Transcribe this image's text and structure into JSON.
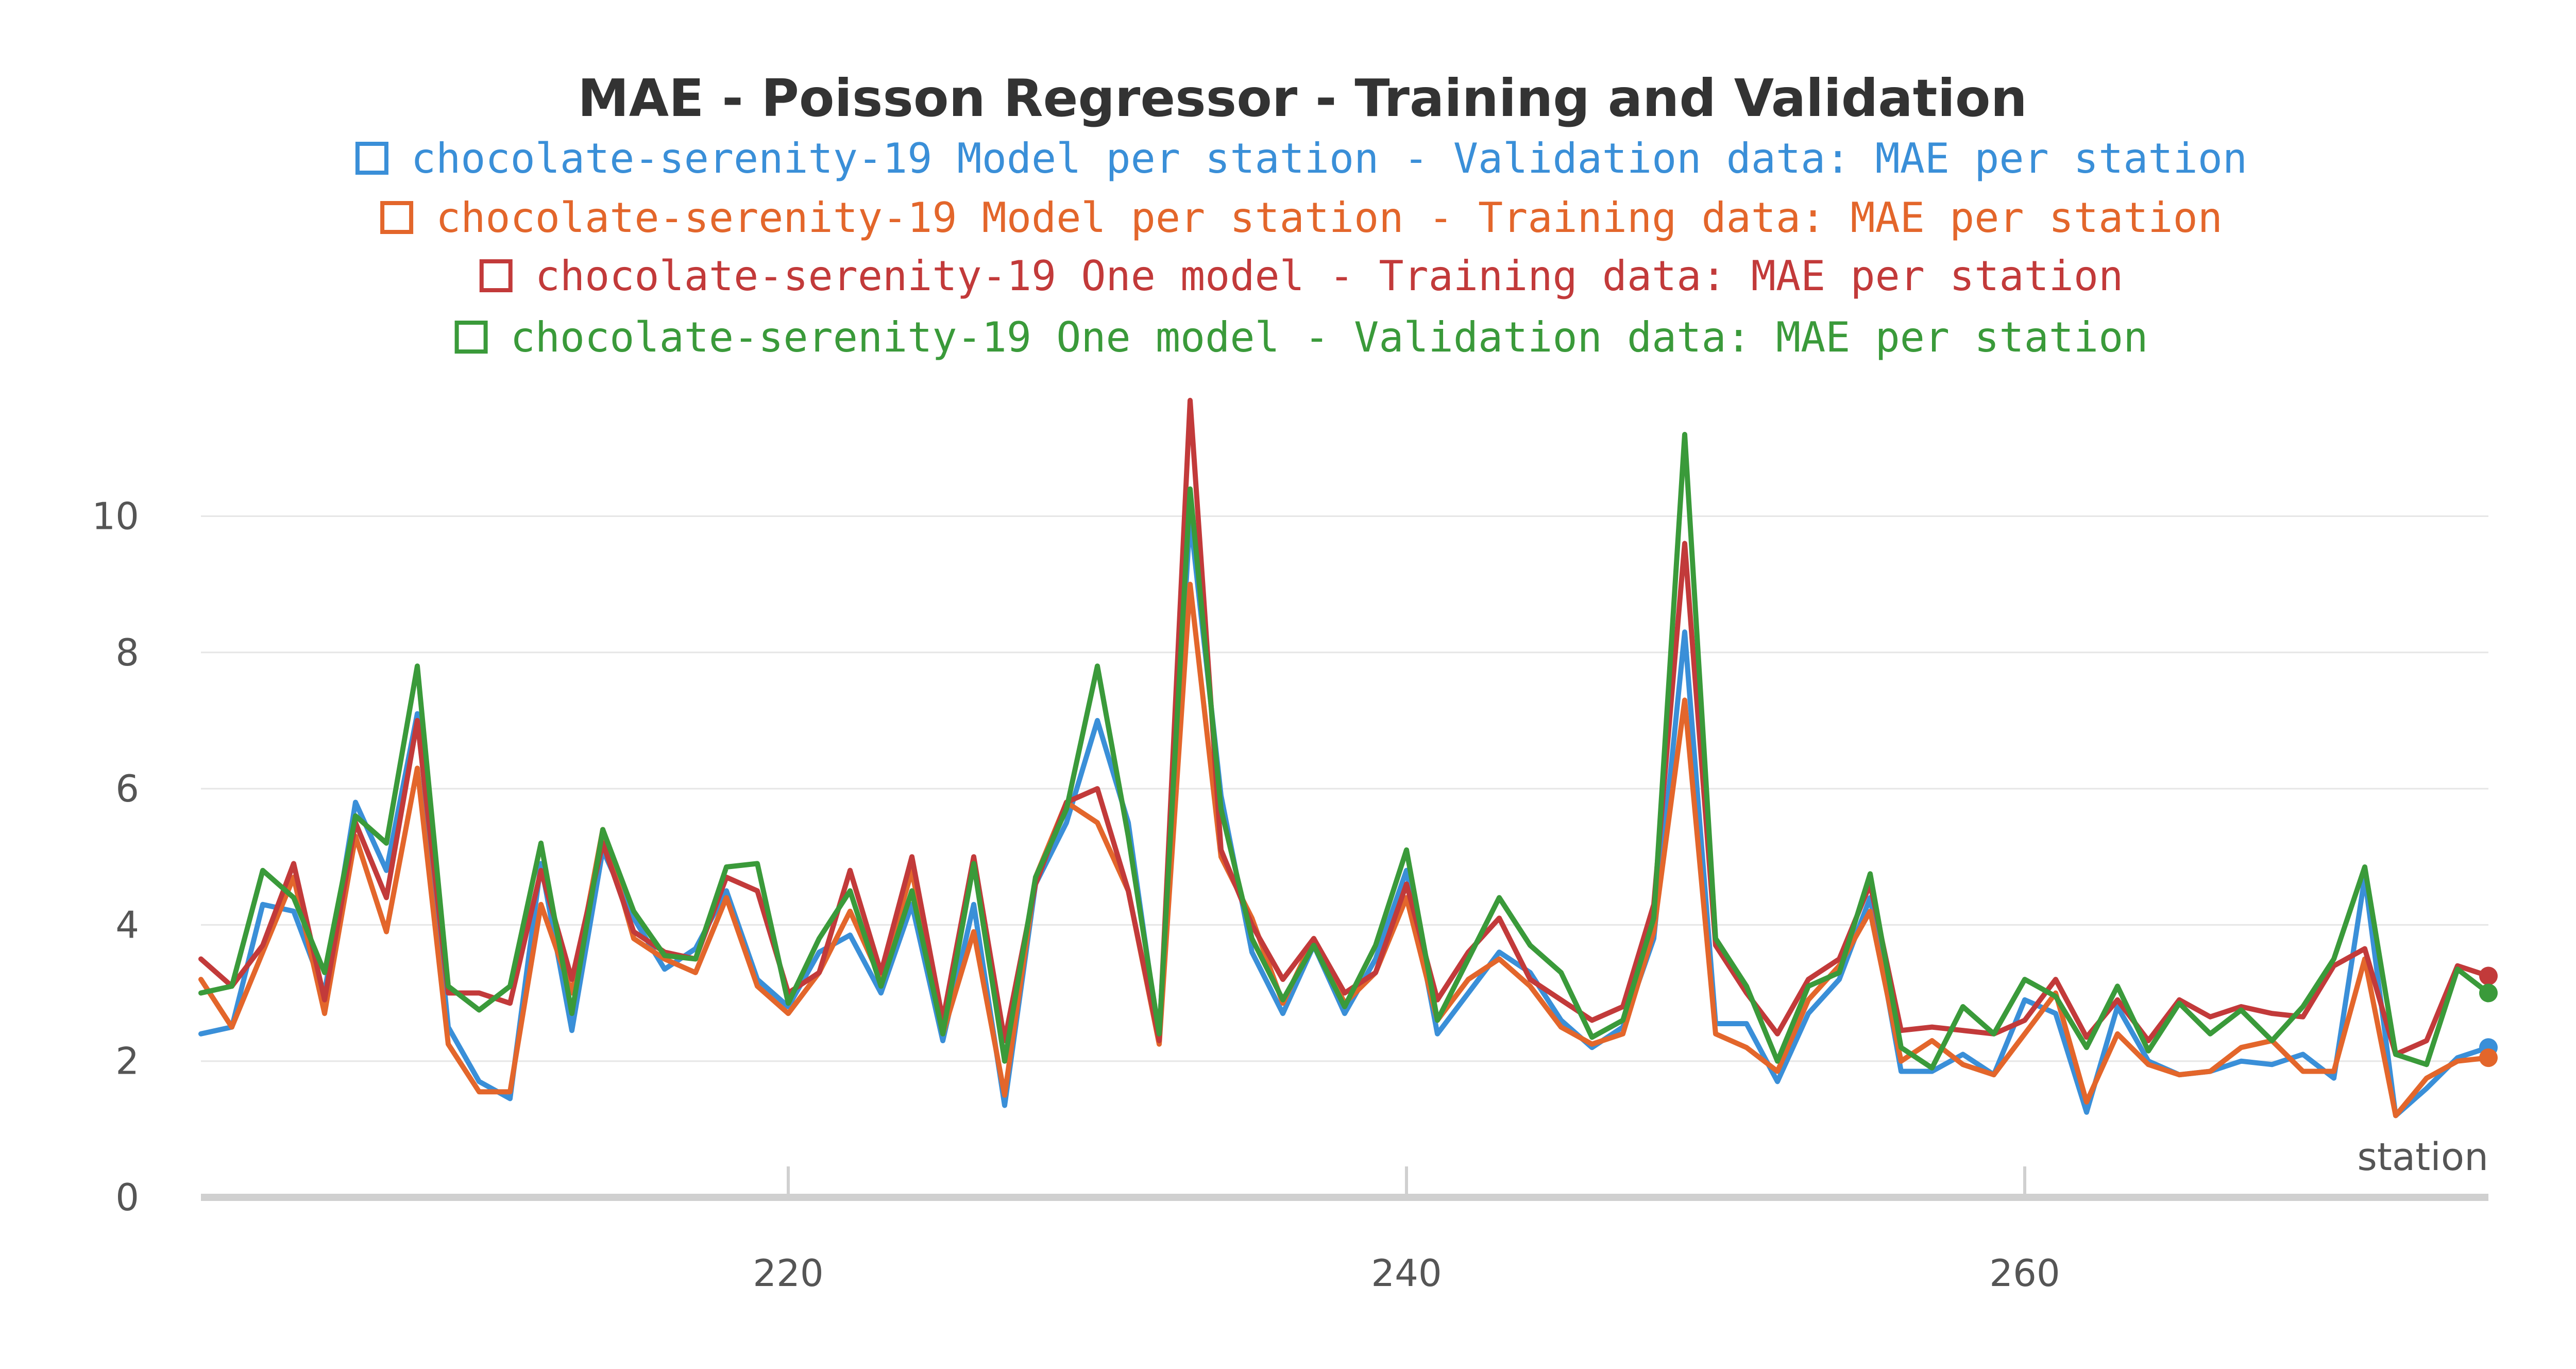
{
  "chart_data": {
    "type": "line",
    "title": "MAE - Poisson Regressor - Training and Validation",
    "xlabel": "station",
    "ylabel": "",
    "xlim": [
      201,
      275
    ],
    "ylim": [
      0,
      11.6
    ],
    "x_ticks": [
      220,
      240,
      260
    ],
    "y_ticks": [
      0,
      2,
      4,
      6,
      8,
      10
    ],
    "grid": true,
    "legend_position": "top-center",
    "x": [
      201,
      202,
      203,
      204,
      205,
      206,
      207,
      208,
      209,
      210,
      211,
      212,
      213,
      214,
      215,
      216,
      217,
      218,
      219,
      220,
      221,
      222,
      223,
      224,
      225,
      226,
      227,
      228,
      229,
      230,
      231,
      232,
      233,
      234,
      235,
      236,
      237,
      238,
      239,
      240,
      241,
      242,
      243,
      244,
      245,
      246,
      247,
      248,
      249,
      250,
      251,
      252,
      253,
      254,
      255,
      256,
      257,
      258,
      259,
      260,
      261,
      262,
      263,
      264,
      265,
      266,
      267,
      268,
      269,
      270,
      271,
      272,
      273,
      274,
      275
    ],
    "series": [
      {
        "name": "chocolate-serenity-19 Model per station - Validation data: MAE per station",
        "color": "#3a8fd8",
        "values": [
          2.4,
          2.5,
          4.3,
          4.2,
          3.0,
          5.8,
          4.8,
          7.1,
          2.5,
          1.7,
          1.45,
          4.9,
          2.45,
          5.1,
          4.1,
          3.35,
          3.65,
          4.5,
          3.2,
          2.8,
          3.6,
          3.85,
          3.0,
          4.3,
          2.3,
          4.3,
          1.35,
          4.6,
          5.5,
          7.0,
          5.5,
          2.3,
          10.0,
          5.9,
          3.6,
          2.7,
          3.7,
          2.7,
          3.5,
          4.8,
          2.4,
          3.0,
          3.6,
          3.3,
          2.6,
          2.2,
          2.5,
          3.8,
          8.3,
          2.55,
          2.55,
          1.7,
          2.7,
          3.2,
          4.4,
          1.85,
          1.85,
          2.1,
          1.8,
          2.9,
          2.7,
          1.25,
          2.8,
          2.0,
          1.8,
          1.85,
          2.0,
          1.95,
          2.1,
          1.75,
          4.7,
          1.2,
          1.6,
          2.05,
          2.2
        ]
      },
      {
        "name": "chocolate-serenity-19 Model per station - Training data: MAE per station",
        "color": "#e3662b",
        "values": [
          3.2,
          2.5,
          3.6,
          4.7,
          2.7,
          5.3,
          3.9,
          6.3,
          2.25,
          1.55,
          1.55,
          4.3,
          3.0,
          5.4,
          3.8,
          3.5,
          3.3,
          4.4,
          3.1,
          2.7,
          3.3,
          4.2,
          3.2,
          4.8,
          2.4,
          3.9,
          1.5,
          4.7,
          5.8,
          5.5,
          4.5,
          2.25,
          9.0,
          5.0,
          4.1,
          2.85,
          3.8,
          2.85,
          3.3,
          4.4,
          2.6,
          3.2,
          3.5,
          3.1,
          2.5,
          2.25,
          2.4,
          3.9,
          7.3,
          2.4,
          2.2,
          1.85,
          2.9,
          3.4,
          4.2,
          2.0,
          2.3,
          1.95,
          1.8,
          2.4,
          3.0,
          1.4,
          2.4,
          1.95,
          1.8,
          1.85,
          2.2,
          2.3,
          1.85,
          1.85,
          3.5,
          1.2,
          1.75,
          2.0,
          2.05
        ]
      },
      {
        "name": "chocolate-serenity-19 One model - Training data: MAE per station",
        "color": "#c23a3a",
        "values": [
          3.5,
          3.1,
          3.7,
          4.9,
          2.9,
          5.5,
          4.4,
          7.0,
          3.0,
          3.0,
          2.85,
          4.8,
          3.2,
          5.2,
          3.9,
          3.6,
          3.5,
          4.7,
          4.5,
          3.0,
          3.3,
          4.8,
          3.3,
          5.0,
          2.6,
          5.0,
          2.3,
          4.6,
          5.8,
          6.0,
          4.5,
          2.3,
          11.7,
          5.1,
          4.0,
          3.2,
          3.8,
          3.0,
          3.3,
          4.6,
          2.9,
          3.6,
          4.1,
          3.2,
          2.9,
          2.6,
          2.8,
          4.3,
          9.6,
          3.7,
          3.0,
          2.4,
          3.2,
          3.5,
          4.6,
          2.45,
          2.5,
          2.45,
          2.4,
          2.6,
          3.2,
          2.35,
          2.9,
          2.3,
          2.9,
          2.65,
          2.8,
          2.7,
          2.65,
          3.4,
          3.65,
          2.1,
          2.3,
          3.4,
          3.25
        ]
      },
      {
        "name": "chocolate-serenity-19 One model - Validation data: MAE per station",
        "color": "#3a9a3a",
        "values": [
          3.0,
          3.1,
          4.8,
          4.4,
          3.3,
          5.6,
          5.2,
          7.8,
          3.1,
          2.75,
          3.1,
          5.2,
          2.7,
          5.4,
          4.2,
          3.55,
          3.5,
          4.85,
          4.9,
          2.85,
          3.8,
          4.5,
          3.1,
          4.5,
          2.4,
          4.9,
          2.0,
          4.7,
          5.7,
          7.8,
          5.3,
          2.4,
          10.4,
          5.7,
          3.8,
          2.9,
          3.7,
          2.8,
          3.7,
          5.1,
          2.6,
          3.5,
          4.4,
          3.7,
          3.3,
          2.35,
          2.6,
          4.1,
          11.2,
          3.8,
          3.1,
          2.0,
          3.1,
          3.3,
          4.75,
          2.2,
          1.9,
          2.8,
          2.4,
          3.2,
          2.95,
          2.2,
          3.1,
          2.15,
          2.85,
          2.4,
          2.75,
          2.3,
          2.8,
          3.5,
          4.85,
          2.1,
          1.95,
          3.35,
          3.0
        ]
      }
    ]
  }
}
